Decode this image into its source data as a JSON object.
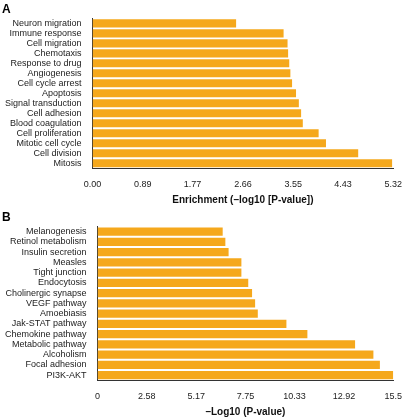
{
  "chart_data": [
    {
      "type": "bar",
      "title": "A",
      "orientation": "horizontal",
      "x_label": "Enrichment (–log10 [P-value])",
      "categories": [
        "Neuron migration",
        "Immune response",
        "Cell migration",
        "Chemotaxis",
        "Response to drug",
        "Angiogenesis",
        "Cell cycle arrest",
        "Apoptosis",
        "Signal transduction",
        "Cell adhesion",
        "Blood coagulation",
        "Cell proliferation",
        "Mitotic cell cycle",
        "Cell division",
        "Mitosis"
      ],
      "values": [
        2.54,
        3.38,
        3.45,
        3.46,
        3.48,
        3.5,
        3.53,
        3.6,
        3.65,
        3.69,
        3.72,
        4.0,
        4.13,
        4.7,
        5.3
      ],
      "color": "#f5a81c",
      "xlim": [
        0,
        5.32
      ],
      "xticks": [
        {
          "value": 0,
          "label": "0.00"
        },
        0.89,
        1.77,
        2.66,
        3.55,
        4.43,
        5.32
      ],
      "grid": false
    },
    {
      "type": "bar",
      "title": "B",
      "orientation": "horizontal",
      "x_label": "–Log10 (P-value)",
      "categories": [
        "Melanogenesis",
        "Retinol metabolism",
        "Insulin secretion",
        "Measles",
        "Tight junction",
        "Endocytosis",
        "Cholinergic synapse",
        "VEGF pathway",
        "Amoebiasis",
        "Jak-STAT pathway",
        "Chemokine pathway",
        "Metabolic pathway",
        "Alcoholism",
        "Focal adhesion",
        "PI3K-AKT"
      ],
      "values": [
        6.56,
        6.7,
        6.87,
        7.54,
        7.54,
        7.9,
        8.1,
        8.26,
        8.4,
        9.9,
        11.0,
        13.5,
        14.46,
        14.8,
        15.5
      ],
      "color": "#f5a81c",
      "xlim": [
        0,
        15.5
      ],
      "xticks": [
        0,
        2.58,
        5.17,
        7.75,
        10.33,
        12.92,
        15.5
      ],
      "grid": false
    }
  ]
}
